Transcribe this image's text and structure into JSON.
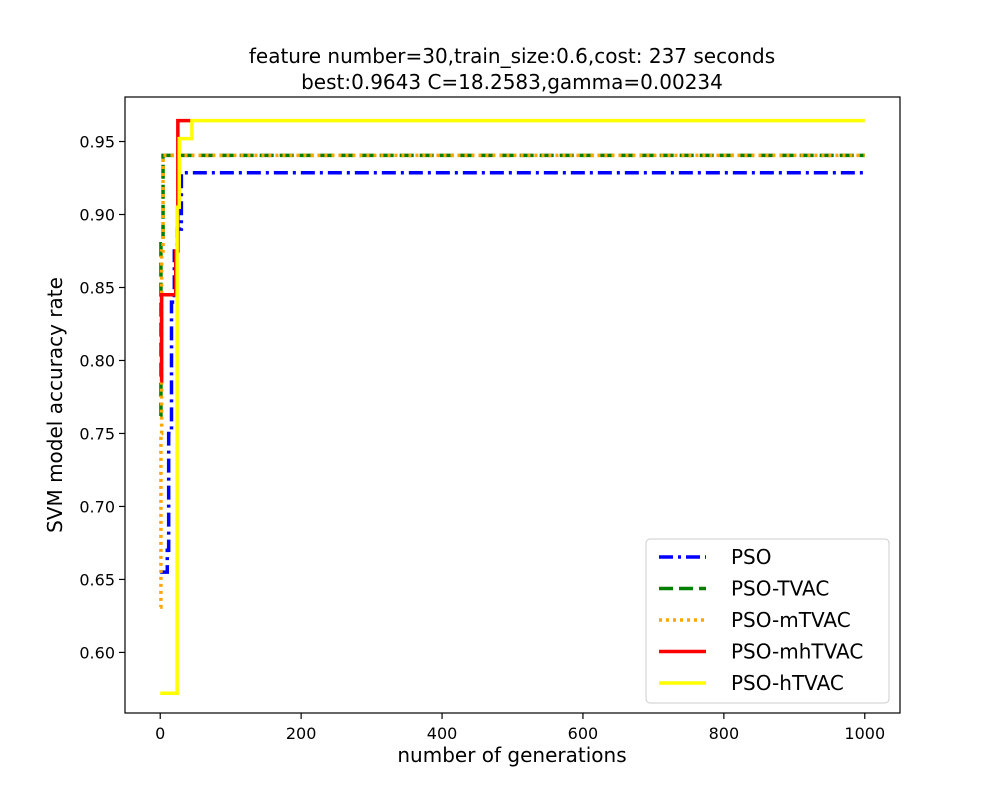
{
  "chart_data": {
    "type": "line",
    "title_lines": [
      "feature number=30,train_size:0.6,cost: 237 seconds",
      "best:0.9643  C=18.2583,gamma=0.00234"
    ],
    "xlabel": "number of generations",
    "ylabel": "SVM model accuracy rate",
    "xlim": [
      -50,
      1050
    ],
    "ylim": [
      0.5585,
      0.9805
    ],
    "x_ticks": [
      0,
      200,
      400,
      600,
      800,
      1000
    ],
    "x_tick_labels": [
      "0",
      "200",
      "400",
      "600",
      "800",
      "1000"
    ],
    "y_ticks": [
      0.6,
      0.65,
      0.7,
      0.75,
      0.8,
      0.85,
      0.9,
      0.95
    ],
    "y_tick_labels": [
      "0.60",
      "0.65",
      "0.70",
      "0.75",
      "0.80",
      "0.85",
      "0.90",
      "0.95"
    ],
    "grid": false,
    "legend_position": "lower-right",
    "series": [
      {
        "name": "PSO",
        "color": "#0000ff",
        "style": "dashdot",
        "x": [
          0,
          2,
          2,
          10,
          10,
          12,
          12,
          16,
          16,
          20,
          20,
          24,
          24,
          30,
          30,
          1000
        ],
        "y": [
          0.655,
          0.655,
          0.655,
          0.655,
          0.67,
          0.67,
          0.75,
          0.75,
          0.84,
          0.84,
          0.875,
          0.875,
          0.89,
          0.89,
          0.9286,
          0.9286
        ]
      },
      {
        "name": "PSO-TVAC",
        "color": "#008000",
        "style": "dashed",
        "x": [
          0,
          1,
          1,
          4,
          4,
          1000
        ],
        "y": [
          0.762,
          0.762,
          0.88,
          0.88,
          0.9405,
          0.9405
        ]
      },
      {
        "name": "PSO-mTVAC",
        "color": "#ffa500",
        "style": "dotted",
        "x": [
          0,
          1,
          1,
          2,
          2,
          4,
          4,
          1000
        ],
        "y": [
          0.631,
          0.631,
          0.75,
          0.75,
          0.875,
          0.875,
          0.9405,
          0.9405
        ]
      },
      {
        "name": "PSO-mhTVAC",
        "color": "#ff0000",
        "style": "solid",
        "x": [
          0,
          2,
          2,
          22,
          22,
          25,
          25,
          44
        ],
        "y": [
          0.786,
          0.786,
          0.845,
          0.845,
          0.875,
          0.875,
          0.9643,
          0.9643
        ]
      },
      {
        "name": "PSO-hTVAC",
        "color": "#ffff00",
        "style": "solid",
        "x": [
          0,
          24,
          24,
          27,
          27,
          45,
          45,
          1000
        ],
        "y": [
          0.572,
          0.572,
          0.905,
          0.905,
          0.952,
          0.952,
          0.9643,
          0.9643
        ]
      }
    ]
  }
}
